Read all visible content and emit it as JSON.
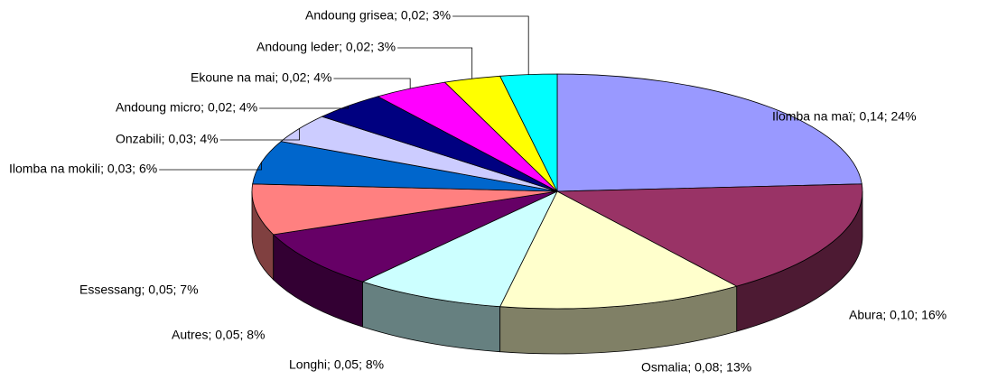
{
  "chart_data": {
    "type": "pie3d",
    "values": [
      24,
      16,
      13,
      8,
      8,
      7,
      6,
      4,
      4,
      4,
      3,
      3
    ],
    "value_labels": [
      "Ilomba na maï; 0,14; 24%",
      "Abura; 0,10; 16%",
      "Osmalia; 0,08; 13%",
      "Longhi; 0,05; 8%",
      "Autres; 0,05; 8%",
      "Essessang; 0,05; 7%",
      "Ilomba na mokili; 0,03; 6%",
      "Onzabili; 0,03; 4%",
      "Andoung micro; 0,02; 4%",
      "Ekoune na mai; 0,02; 4%",
      "Andoung leder; 0,02; 3%",
      "Andoung grisea; 0,02; 3%"
    ],
    "colors": [
      "#9999ff",
      "#993366",
      "#ffffcc",
      "#ccffff",
      "#660066",
      "#ff8080",
      "#0066cc",
      "#ccccff",
      "#000080",
      "#ff00ff",
      "#ffff00",
      "#00ffff"
    ]
  }
}
